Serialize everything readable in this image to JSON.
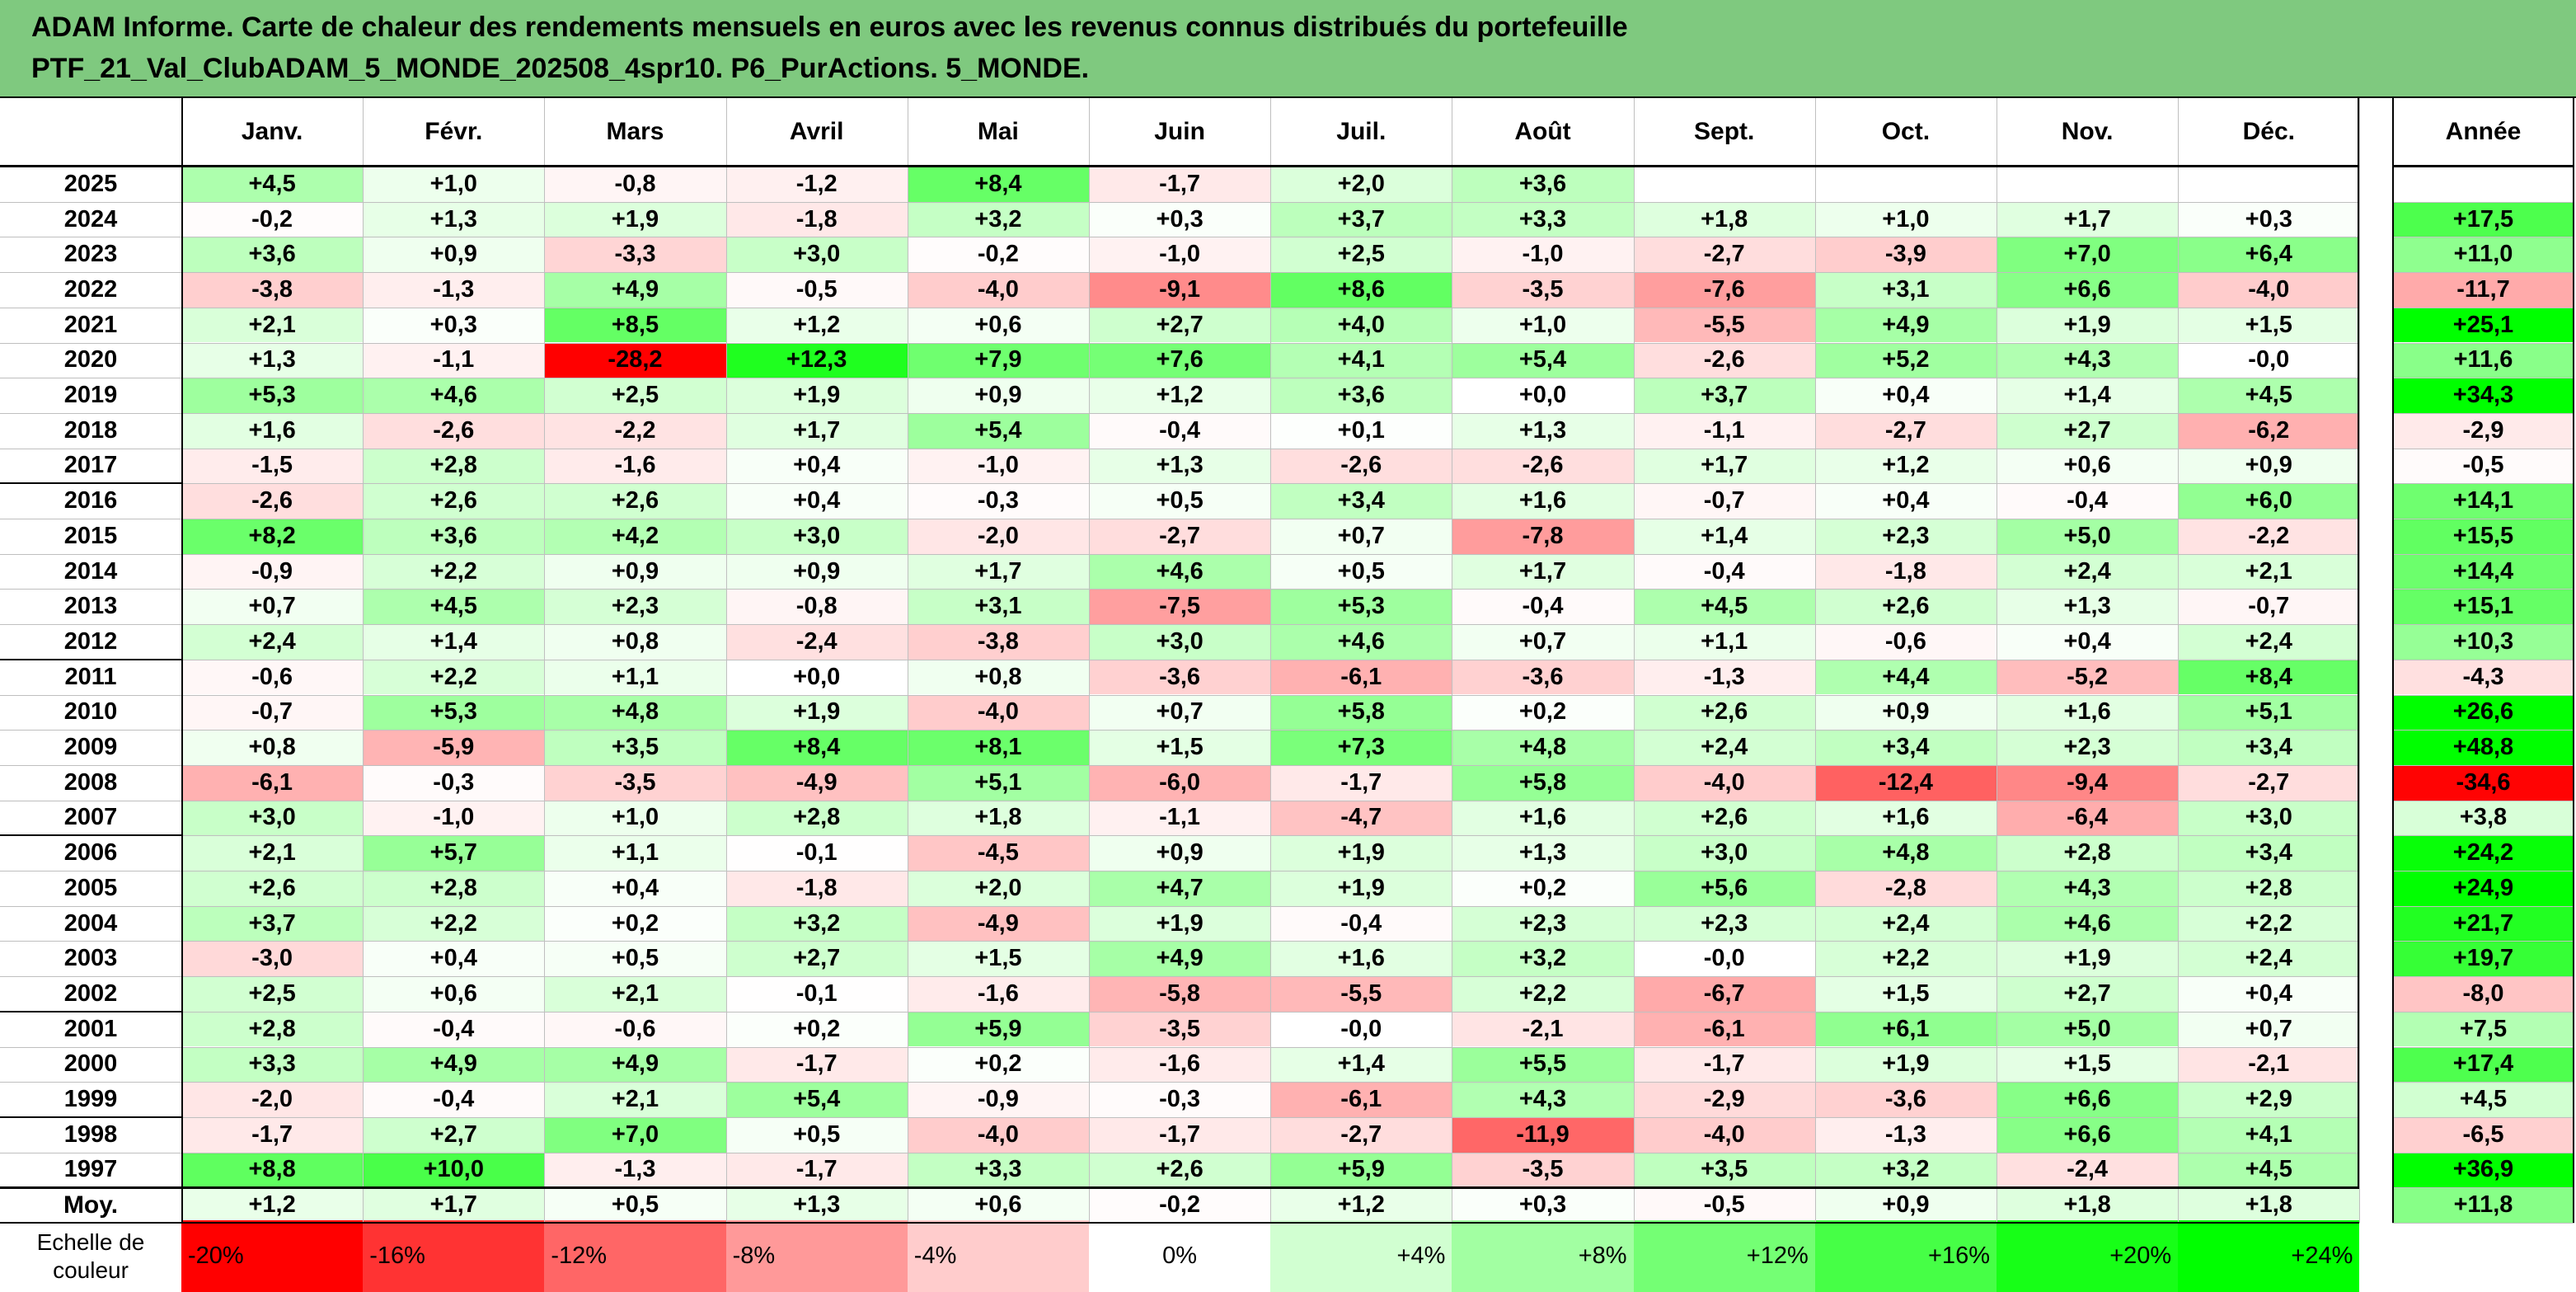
{
  "title": {
    "line1": "ADAM Informe. Carte de chaleur des rendements mensuels en euros avec les revenus connus distribués du portefeuille",
    "line2": "PTF_21_Val_ClubADAM_5_MONDE_202508_4spr10. P6_PurActions. 5_MONDE."
  },
  "chart_data": {
    "type": "heatmap",
    "months": [
      "Janv.",
      "Févr.",
      "Mars",
      "Avril",
      "Mai",
      "Juin",
      "Juil.",
      "Août",
      "Sept.",
      "Oct.",
      "Nov.",
      "Déc."
    ],
    "annual_header": "Année",
    "rows": [
      {
        "year": "2025",
        "values": [
          "+4,5",
          "+1,0",
          "-0,8",
          "-1,2",
          "+8,4",
          "-1,7",
          "+2,0",
          "+3,6",
          "",
          "",
          "",
          ""
        ],
        "annual": ""
      },
      {
        "year": "2024",
        "values": [
          "-0,2",
          "+1,3",
          "+1,9",
          "-1,8",
          "+3,2",
          "+0,3",
          "+3,7",
          "+3,3",
          "+1,8",
          "+1,0",
          "+1,7",
          "+0,3"
        ],
        "annual": "+17,5"
      },
      {
        "year": "2023",
        "values": [
          "+3,6",
          "+0,9",
          "-3,3",
          "+3,0",
          "-0,2",
          "-1,0",
          "+2,5",
          "-1,0",
          "-2,7",
          "-3,9",
          "+7,0",
          "+6,4"
        ],
        "annual": "+11,0"
      },
      {
        "year": "2022",
        "values": [
          "-3,8",
          "-1,3",
          "+4,9",
          "-0,5",
          "-4,0",
          "-9,1",
          "+8,6",
          "-3,5",
          "-7,6",
          "+3,1",
          "+6,6",
          "-4,0"
        ],
        "annual": "-11,7"
      },
      {
        "year": "2021",
        "values": [
          "+2,1",
          "+0,3",
          "+8,5",
          "+1,2",
          "+0,6",
          "+2,7",
          "+4,0",
          "+1,0",
          "-5,5",
          "+4,9",
          "+1,9",
          "+1,5"
        ],
        "annual": "+25,1"
      },
      {
        "year": "2020",
        "values": [
          "+1,3",
          "-1,1",
          "-28,2",
          "+12,3",
          "+7,9",
          "+7,6",
          "+4,1",
          "+5,4",
          "-2,6",
          "+5,2",
          "+4,3",
          "-0,0"
        ],
        "annual": "+11,6"
      },
      {
        "year": "2019",
        "values": [
          "+5,3",
          "+4,6",
          "+2,5",
          "+1,9",
          "+0,9",
          "+1,2",
          "+3,6",
          "+0,0",
          "+3,7",
          "+0,4",
          "+1,4",
          "+4,5"
        ],
        "annual": "+34,3"
      },
      {
        "year": "2018",
        "values": [
          "+1,6",
          "-2,6",
          "-2,2",
          "+1,7",
          "+5,4",
          "-0,4",
          "+0,1",
          "+1,3",
          "-1,1",
          "-2,7",
          "+2,7",
          "-6,2"
        ],
        "annual": "-2,9"
      },
      {
        "year": "2017",
        "values": [
          "-1,5",
          "+2,8",
          "-1,6",
          "+0,4",
          "-1,0",
          "+1,3",
          "-2,6",
          "-2,6",
          "+1,7",
          "+1,2",
          "+0,6",
          "+0,9"
        ],
        "annual": "-0,5"
      },
      {
        "year": "2016",
        "values": [
          "-2,6",
          "+2,6",
          "+2,6",
          "+0,4",
          "-0,3",
          "+0,5",
          "+3,4",
          "+1,6",
          "-0,7",
          "+0,4",
          "-0,4",
          "+6,0"
        ],
        "annual": "+14,1"
      },
      {
        "year": "2015",
        "values": [
          "+8,2",
          "+3,6",
          "+4,2",
          "+3,0",
          "-2,0",
          "-2,7",
          "+0,7",
          "-7,8",
          "+1,4",
          "+2,3",
          "+5,0",
          "-2,2"
        ],
        "annual": "+15,5"
      },
      {
        "year": "2014",
        "values": [
          "-0,9",
          "+2,2",
          "+0,9",
          "+0,9",
          "+1,7",
          "+4,6",
          "+0,5",
          "+1,7",
          "-0,4",
          "-1,8",
          "+2,4",
          "+2,1"
        ],
        "annual": "+14,4"
      },
      {
        "year": "2013",
        "values": [
          "+0,7",
          "+4,5",
          "+2,3",
          "-0,8",
          "+3,1",
          "-7,5",
          "+5,3",
          "-0,4",
          "+4,5",
          "+2,6",
          "+1,3",
          "-0,7"
        ],
        "annual": "+15,1"
      },
      {
        "year": "2012",
        "values": [
          "+2,4",
          "+1,4",
          "+0,8",
          "-2,4",
          "-3,8",
          "+3,0",
          "+4,6",
          "+0,7",
          "+1,1",
          "-0,6",
          "+0,4",
          "+2,4"
        ],
        "annual": "+10,3"
      },
      {
        "year": "2011",
        "values": [
          "-0,6",
          "+2,2",
          "+1,1",
          "+0,0",
          "+0,8",
          "-3,6",
          "-6,1",
          "-3,6",
          "-1,3",
          "+4,4",
          "-5,2",
          "+8,4"
        ],
        "annual": "-4,3"
      },
      {
        "year": "2010",
        "values": [
          "-0,7",
          "+5,3",
          "+4,8",
          "+1,9",
          "-4,0",
          "+0,7",
          "+5,8",
          "+0,2",
          "+2,6",
          "+0,9",
          "+1,6",
          "+5,1"
        ],
        "annual": "+26,6"
      },
      {
        "year": "2009",
        "values": [
          "+0,8",
          "-5,9",
          "+3,5",
          "+8,4",
          "+8,1",
          "+1,5",
          "+7,3",
          "+4,8",
          "+2,4",
          "+3,4",
          "+2,3",
          "+3,4"
        ],
        "annual": "+48,8"
      },
      {
        "year": "2008",
        "values": [
          "-6,1",
          "-0,3",
          "-3,5",
          "-4,9",
          "+5,1",
          "-6,0",
          "-1,7",
          "+5,8",
          "-4,0",
          "-12,4",
          "-9,4",
          "-2,7"
        ],
        "annual": "-34,6"
      },
      {
        "year": "2007",
        "values": [
          "+3,0",
          "-1,0",
          "+1,0",
          "+2,8",
          "+1,8",
          "-1,1",
          "-4,7",
          "+1,6",
          "+2,6",
          "+1,6",
          "-6,4",
          "+3,0"
        ],
        "annual": "+3,8"
      },
      {
        "year": "2006",
        "values": [
          "+2,1",
          "+5,7",
          "+1,1",
          "-0,1",
          "-4,5",
          "+0,9",
          "+1,9",
          "+1,3",
          "+3,0",
          "+4,8",
          "+2,8",
          "+3,4"
        ],
        "annual": "+24,2"
      },
      {
        "year": "2005",
        "values": [
          "+2,6",
          "+2,8",
          "+0,4",
          "-1,8",
          "+2,0",
          "+4,7",
          "+1,9",
          "+0,2",
          "+5,6",
          "-2,8",
          "+4,3",
          "+2,8"
        ],
        "annual": "+24,9"
      },
      {
        "year": "2004",
        "values": [
          "+3,7",
          "+2,2",
          "+0,2",
          "+3,2",
          "-4,9",
          "+1,9",
          "-0,4",
          "+2,3",
          "+2,3",
          "+2,4",
          "+4,6",
          "+2,2"
        ],
        "annual": "+21,7"
      },
      {
        "year": "2003",
        "values": [
          "-3,0",
          "+0,4",
          "+0,5",
          "+2,7",
          "+1,5",
          "+4,9",
          "+1,6",
          "+3,2",
          "-0,0",
          "+2,2",
          "+1,9",
          "+2,4"
        ],
        "annual": "+19,7"
      },
      {
        "year": "2002",
        "values": [
          "+2,5",
          "+0,6",
          "+2,1",
          "-0,1",
          "-1,6",
          "-5,8",
          "-5,5",
          "+2,2",
          "-6,7",
          "+1,5",
          "+2,7",
          "+0,4"
        ],
        "annual": "-8,0"
      },
      {
        "year": "2001",
        "values": [
          "+2,8",
          "-0,4",
          "-0,6",
          "+0,2",
          "+5,9",
          "-3,5",
          "-0,0",
          "-2,1",
          "-6,1",
          "+6,1",
          "+5,0",
          "+0,7"
        ],
        "annual": "+7,5"
      },
      {
        "year": "2000",
        "values": [
          "+3,3",
          "+4,9",
          "+4,9",
          "-1,7",
          "+0,2",
          "-1,6",
          "+1,4",
          "+5,5",
          "-1,7",
          "+1,9",
          "+1,5",
          "-2,1"
        ],
        "annual": "+17,4"
      },
      {
        "year": "1999",
        "values": [
          "-2,0",
          "-0,4",
          "+2,1",
          "+5,4",
          "-0,9",
          "-0,3",
          "-6,1",
          "+4,3",
          "-2,9",
          "-3,6",
          "+6,6",
          "+2,9"
        ],
        "annual": "+4,5"
      },
      {
        "year": "1998",
        "values": [
          "-1,7",
          "+2,7",
          "+7,0",
          "+0,5",
          "-4,0",
          "-1,7",
          "-2,7",
          "-11,9",
          "-4,0",
          "-1,3",
          "+6,6",
          "+4,1"
        ],
        "annual": "-6,5"
      },
      {
        "year": "1997",
        "values": [
          "+8,8",
          "+10,0",
          "-1,3",
          "-1,7",
          "+3,3",
          "+2,6",
          "+5,9",
          "-3,5",
          "+3,5",
          "+3,2",
          "-2,4",
          "+4,5"
        ],
        "annual": "+36,9"
      }
    ],
    "average": {
      "label": "Moy.",
      "values": [
        "+1,2",
        "+1,7",
        "+0,5",
        "+1,3",
        "+0,6",
        "-0,2",
        "+1,2",
        "+0,3",
        "-0,5",
        "+0,9",
        "+1,8",
        "+1,8"
      ],
      "annual": "+11,8"
    },
    "scale": {
      "title_line1": "Echelle de",
      "title_line2": "couleur",
      "labels": [
        "-20%",
        "-16%",
        "-12%",
        "-8%",
        "-4%",
        "0%",
        "+4%",
        "+8%",
        "+12%",
        "+16%",
        "+20%",
        "+24%"
      ],
      "values": [
        -20,
        -16,
        -12,
        -8,
        -4,
        0,
        4,
        8,
        12,
        16,
        20,
        24
      ]
    },
    "colors": {
      "positive_max": "#00ff00",
      "negative_max": "#ff0000",
      "neutral": "#ffffff",
      "title_bg": "#7fc97f"
    }
  }
}
